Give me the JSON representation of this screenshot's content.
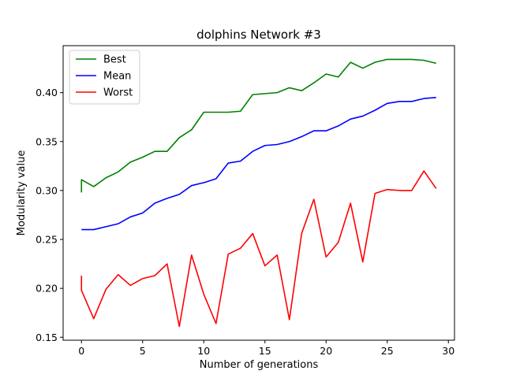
{
  "chart_data": {
    "type": "line",
    "title": "dolphins Network #3",
    "xlabel": "Number of generations",
    "ylabel": "Modularity value",
    "xlim": [
      -1.5,
      30.5
    ],
    "ylim": [
      0.147,
      0.448
    ],
    "xticks": [
      0,
      5,
      10,
      15,
      20,
      25,
      30
    ],
    "xtick_labels": [
      "0",
      "5",
      "10",
      "15",
      "20",
      "25",
      "30"
    ],
    "yticks": [
      0.15,
      0.2,
      0.25,
      0.3,
      0.35,
      0.4
    ],
    "ytick_labels": [
      "0.15",
      "0.20",
      "0.25",
      "0.30",
      "0.35",
      "0.40"
    ],
    "grid": false,
    "legend_position": "top-left",
    "series": [
      {
        "name": "Best",
        "color": "#008000",
        "x": [
          0,
          0,
          1,
          2,
          3,
          4,
          5,
          6,
          7,
          8,
          9,
          10,
          11,
          12,
          13,
          14,
          15,
          16,
          17,
          18,
          19,
          20,
          21,
          22,
          23,
          24,
          25,
          26,
          27,
          28,
          29
        ],
        "values": [
          0.298,
          0.311,
          0.304,
          0.313,
          0.319,
          0.329,
          0.334,
          0.34,
          0.34,
          0.354,
          0.362,
          0.38,
          0.38,
          0.38,
          0.381,
          0.398,
          0.399,
          0.4,
          0.405,
          0.402,
          0.41,
          0.419,
          0.416,
          0.431,
          0.425,
          0.431,
          0.434,
          0.434,
          0.434,
          0.433,
          0.43
        ]
      },
      {
        "name": "Mean",
        "color": "#0000ff",
        "x": [
          0,
          1,
          2,
          3,
          4,
          5,
          6,
          7,
          8,
          9,
          10,
          11,
          12,
          13,
          14,
          15,
          16,
          17,
          18,
          19,
          20,
          21,
          22,
          23,
          24,
          25,
          26,
          27,
          28,
          29
        ],
        "values": [
          0.26,
          0.26,
          0.263,
          0.266,
          0.273,
          0.277,
          0.287,
          0.292,
          0.296,
          0.305,
          0.308,
          0.312,
          0.328,
          0.33,
          0.34,
          0.346,
          0.347,
          0.35,
          0.355,
          0.361,
          0.361,
          0.366,
          0.373,
          0.376,
          0.382,
          0.389,
          0.391,
          0.391,
          0.394,
          0.395
        ]
      },
      {
        "name": "Worst",
        "color": "#ff0000",
        "x": [
          0,
          0,
          1,
          2,
          3,
          4,
          5,
          6,
          7,
          8,
          9,
          10,
          11,
          12,
          13,
          14,
          15,
          16,
          17,
          18,
          19,
          20,
          21,
          22,
          23,
          24,
          25,
          26,
          27,
          28,
          29
        ],
        "values": [
          0.213,
          0.198,
          0.169,
          0.199,
          0.214,
          0.203,
          0.21,
          0.213,
          0.225,
          0.161,
          0.234,
          0.194,
          0.164,
          0.235,
          0.241,
          0.256,
          0.223,
          0.234,
          0.168,
          0.256,
          0.291,
          0.232,
          0.247,
          0.287,
          0.227,
          0.297,
          0.301,
          0.3,
          0.3,
          0.32,
          0.302
        ]
      }
    ]
  }
}
